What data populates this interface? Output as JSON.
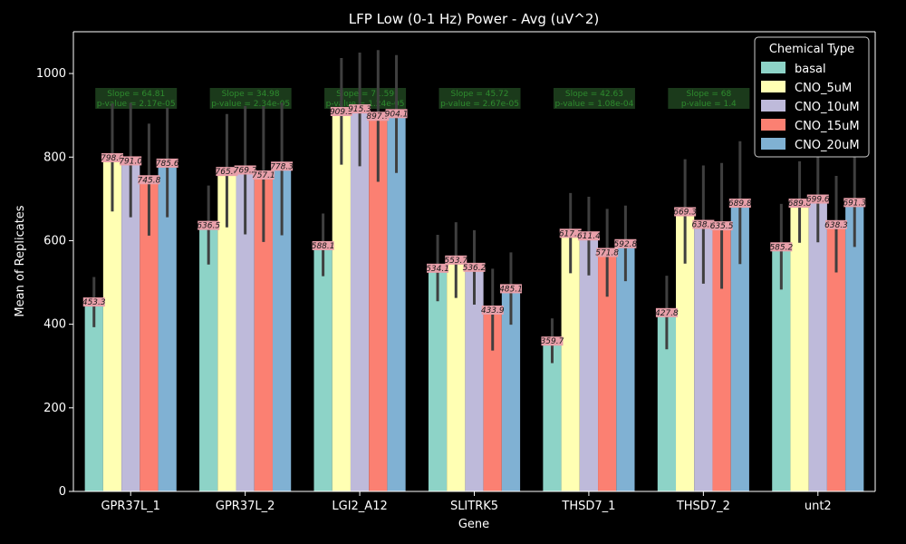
{
  "chart_data": {
    "type": "bar",
    "title": "LFP Low (0-1 Hz) Power - Avg (uV^2)",
    "xlabel": "Gene",
    "ylabel": "Mean of Replicates",
    "ylim": [
      0,
      1100
    ],
    "yticks": [
      0,
      200,
      400,
      600,
      800,
      1000
    ],
    "grid": false,
    "legend_position": "top-right",
    "legend_title": "Chemical Type",
    "categories": [
      "GPR37L_1",
      "GPR37L_2",
      "LGI2_A12",
      "SLITRK5",
      "THSD7_1",
      "THSD7_2",
      "unt2"
    ],
    "series": [
      {
        "name": "basal",
        "color": "#8dd3c7",
        "values": [
          453.3,
          636.5,
          588.1,
          534.1,
          359.7,
          427.8,
          585.2
        ],
        "labels": [
          "453.3",
          "636.5",
          "588.1",
          "534.1",
          "359.7",
          "427.8",
          "585.2"
        ],
        "err_low": [
          393,
          543,
          515,
          455,
          307,
          340,
          483
        ],
        "err_high": [
          513,
          732,
          665,
          614,
          414,
          516,
          688
        ]
      },
      {
        "name": "CNO_5uM",
        "color": "#ffffb3",
        "values": [
          798.6,
          765.6,
          909.1,
          553.7,
          617.7,
          669.3,
          689.8
        ],
        "labels": [
          "798.6",
          "765.6",
          "909.1",
          "553.7",
          "617.7",
          "669.3",
          "689.8"
        ],
        "err_low": [
          670,
          632,
          782,
          463,
          522,
          545,
          595
        ],
        "err_high": [
          928,
          903,
          1037,
          644,
          714,
          795,
          790
        ]
      },
      {
        "name": "CNO_10uM",
        "color": "#bebada",
        "values": [
          791.0,
          769.2,
          915.3,
          536.2,
          611.4,
          638.9,
          699.6
        ],
        "labels": [
          "791.0",
          "769.2",
          "915.3",
          "536.2",
          "611.4",
          "638.9",
          "699.6"
        ],
        "err_low": [
          656,
          615,
          778,
          447,
          517,
          497,
          596
        ],
        "err_high": [
          930,
          922,
          1050,
          625,
          705,
          780,
          805
        ]
      },
      {
        "name": "CNO_15uM",
        "color": "#fb8072",
        "values": [
          745.8,
          757.1,
          897.7,
          433.9,
          571.8,
          635.5,
          638.3
        ],
        "labels": [
          "745.8",
          "757.1",
          "897.7",
          "433.9",
          "571.8",
          "635.5",
          "638.3"
        ],
        "err_low": [
          612,
          597,
          741,
          337,
          466,
          485,
          524
        ],
        "err_high": [
          880,
          922,
          1056,
          533,
          676,
          786,
          755
        ]
      },
      {
        "name": "CNO_20uM",
        "color": "#80b1d3",
        "values": [
          785.6,
          778.3,
          904.1,
          485.1,
          592.8,
          689.8,
          691.3
        ],
        "labels": [
          "785.6",
          "778.3",
          "904.1",
          "485.1",
          "592.8",
          "689.8",
          "691.3"
        ],
        "err_low": [
          656,
          613,
          762,
          399,
          503,
          544,
          585
        ],
        "err_high": [
          918,
          930,
          1044,
          572,
          684,
          838,
          800
        ]
      }
    ],
    "annotations": [
      {
        "category": "GPR37L_1",
        "line1": "Slope = 64.81",
        "line2": "p-value = 2.17e-05"
      },
      {
        "category": "GPR37L_2",
        "line1": "Slope = 34.98",
        "line2": "p-value = 2.34e-05"
      },
      {
        "category": "LGI2_A12",
        "line1": "Slope = 71.59",
        "line2": "p-value = 1.24e-05"
      },
      {
        "category": "SLITRK5",
        "line1": "Slope = 45.72",
        "line2": "p-value = 2.67e-05"
      },
      {
        "category": "THSD7_1",
        "line1": "Slope = 42.63",
        "line2": "p-value = 1.08e-04"
      },
      {
        "category": "THSD7_2",
        "line1": "Slope = 68",
        "line2": "p-value = 1.4"
      },
      {
        "category": "unt2",
        "line1": "",
        "line2": ""
      }
    ]
  }
}
